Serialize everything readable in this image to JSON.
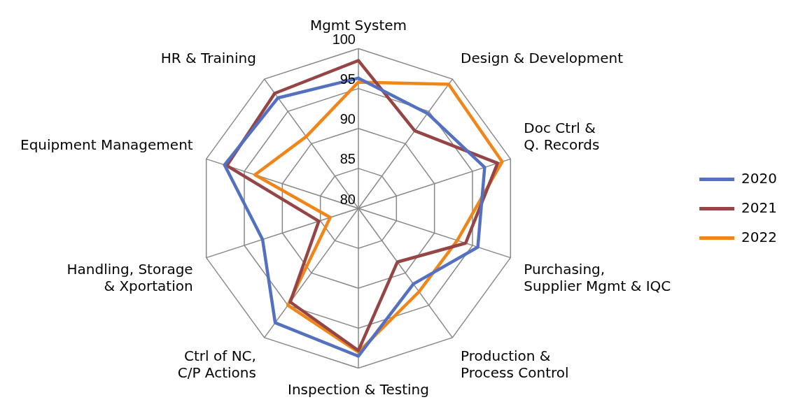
{
  "chart_data": {
    "type": "radar",
    "categories": [
      "Mgmt System",
      "Design & Development",
      "Doc Ctrl & Q. Records",
      "Purchasing, Supplier Mgmt & IQC",
      "Production & Process Control",
      "Inspection & Testing",
      "Ctrl of NC, C/P Actions",
      "Handling, Storage & Xportation",
      "Equipment Management",
      "HR & Training"
    ],
    "series": [
      {
        "name": "2020",
        "color": "#5470c0",
        "values": [
          96.3,
          94.7,
          96.6,
          95.7,
          91.7,
          98.5,
          97.7,
          92.6,
          97.6,
          97.1
        ]
      },
      {
        "name": "2021",
        "color": "#954545",
        "values": [
          98.5,
          92.0,
          98.3,
          94.1,
          88.3,
          97.8,
          94.5,
          85.2,
          97.3,
          97.8
        ]
      },
      {
        "name": "2022",
        "color": "#f0861a",
        "values": [
          95.8,
          99.2,
          98.9,
          93.0,
          92.9,
          98.0,
          95.0,
          83.7,
          93.6,
          91.1
        ]
      }
    ],
    "ylim": [
      80,
      100
    ],
    "yticks": [
      80,
      85,
      90,
      95,
      100
    ],
    "grid": true,
    "legend": "right",
    "marker": "none",
    "line_style": "solid"
  }
}
